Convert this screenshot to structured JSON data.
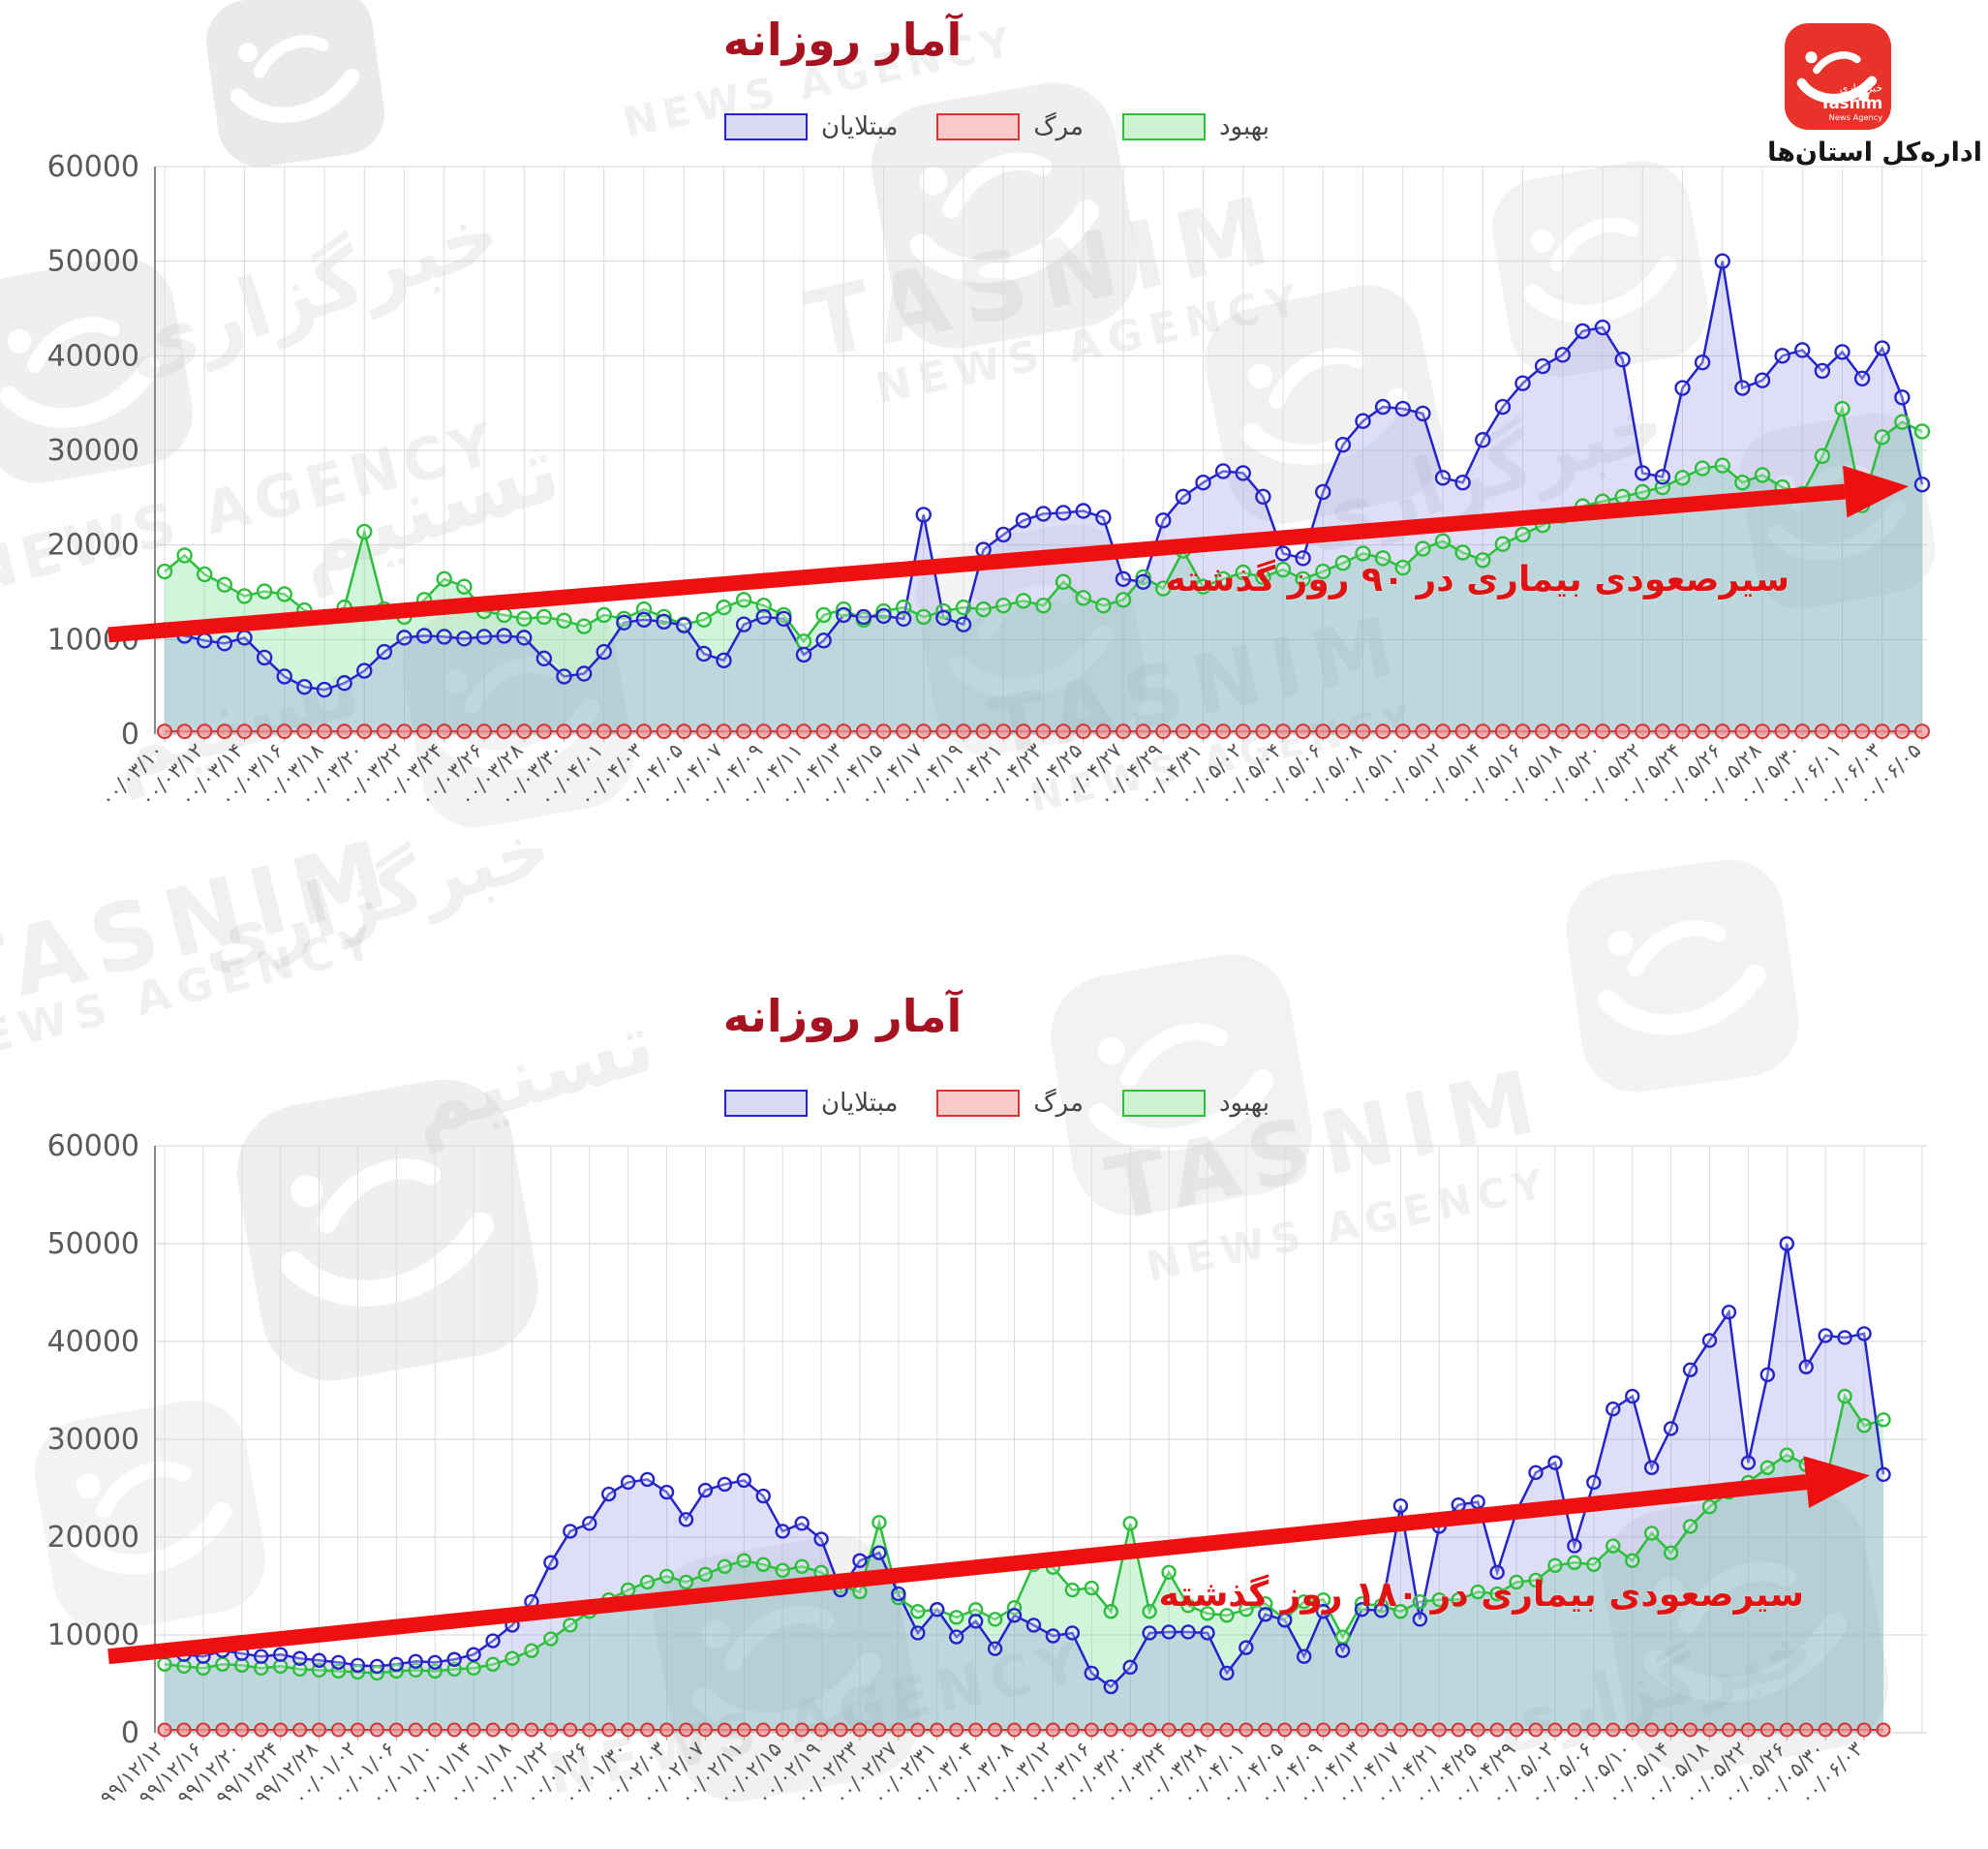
{
  "page": {
    "background": "#ffffff"
  },
  "branding": {
    "logo_text_fa": "خبرگزاری",
    "logo_text_en": "Tasnim",
    "logo_text_en2": "News Agency",
    "logo_color": "#e8332a",
    "department": "اداره‌کل استان‌ها",
    "watermark_fa_1": "خبرگزاری",
    "watermark_fa_2": "تسنیم",
    "watermark_en_1": "TASNIM",
    "watermark_en_2": "NEWS AGENCY"
  },
  "chart_data": [
    {
      "type": "line",
      "title": "آمار روزانه",
      "xlabel": "",
      "ylabel": "",
      "ylim": [
        0,
        60000
      ],
      "y_ticks": [
        0,
        10000,
        20000,
        30000,
        40000,
        50000,
        60000
      ],
      "grid": true,
      "legend_position": "top",
      "legend": [
        {
          "label": "مبتلایان",
          "color": "#2424c8",
          "fill": "#8888dd",
          "fill_opacity": 0.28
        },
        {
          "label": "مرگ",
          "color": "#d43535",
          "fill": "#f4a0a0",
          "fill_opacity": 0.5
        },
        {
          "label": "بهبود",
          "color": "#2cbe3c",
          "fill": "#66dd88",
          "fill_opacity": 0.3
        }
      ],
      "x_tick_labels": [
        "۰۰/۰۳/۱۰",
        "۰۰/۰۳/۱۲",
        "۰۰/۰۳/۱۴",
        "۰۰/۰۳/۱۶",
        "۰۰/۰۳/۱۸",
        "۰۰/۰۳/۲۰",
        "۰۰/۰۳/۲۲",
        "۰۰/۰۳/۲۴",
        "۰۰/۰۳/۲۶",
        "۰۰/۰۳/۲۸",
        "۰۰/۰۳/۳۰",
        "۰۰/۰۴/۰۱",
        "۰۰/۰۴/۰۳",
        "۰۰/۰۴/۰۵",
        "۰۰/۰۴/۰۷",
        "۰۰/۰۴/۰۹",
        "۰۰/۰۴/۱۱",
        "۰۰/۰۴/۱۳",
        "۰۰/۰۴/۱۵",
        "۰۰/۰۴/۱۷",
        "۰۰/۰۴/۱۹",
        "۰۰/۰۴/۲۱",
        "۰۰/۰۴/۲۳",
        "۰۰/۰۴/۲۵",
        "۰۰/۰۴/۲۷",
        "۰۰/۰۴/۲۹",
        "۰۰/۰۴/۳۱",
        "۰۰/۰۵/۰۲",
        "۰۰/۰۵/۰۴",
        "۰۰/۰۵/۰۶",
        "۰۰/۰۵/۰۸",
        "۰۰/۰۵/۱۰",
        "۰۰/۰۵/۱۲",
        "۰۰/۰۵/۱۴",
        "۰۰/۰۵/۱۶",
        "۰۰/۰۵/۱۸",
        "۰۰/۰۵/۲۰",
        "۰۰/۰۵/۲۲",
        "۰۰/۰۵/۲۴",
        "۰۰/۰۵/۲۶",
        "۰۰/۰۵/۲۸",
        "۰۰/۰۵/۳۰",
        "۰۰/۰۶/۰۱",
        "۰۰/۰۶/۰۳",
        "۰۰/۰۶/۰۵"
      ],
      "series": [
        {
          "name": "مبتلایان",
          "values": [
            11000,
            10400,
            9900,
            9600,
            10200,
            8100,
            6100,
            5000,
            4700,
            5400,
            6700,
            8700,
            10200,
            10400,
            10300,
            10100,
            10300,
            10400,
            10200,
            8000,
            6100,
            6400,
            8700,
            11800,
            12100,
            11900,
            11500,
            8500,
            7800,
            11600,
            12400,
            12200,
            8400,
            9900,
            12600,
            12400,
            12500,
            12200,
            23200,
            12300,
            11600,
            19500,
            21100,
            22600,
            23300,
            23400,
            23600,
            22900,
            16400,
            16100,
            22600,
            25100,
            26600,
            27800,
            27600,
            25100,
            19100,
            18600,
            25600,
            30600,
            33100,
            34600,
            34400,
            33900,
            27100,
            26600,
            31100,
            34600,
            37100,
            38900,
            40100,
            42600,
            43000,
            39600,
            27600,
            27200,
            36600,
            39300,
            50000,
            36600,
            37400,
            40000,
            40600,
            38400,
            40400,
            37600,
            40800,
            35600,
            26400
          ]
        },
        {
          "name": "مرگ",
          "values": [
            300,
            300,
            300,
            300,
            300,
            300,
            300,
            300,
            300,
            300,
            300,
            300,
            300,
            300,
            300,
            300,
            300,
            300,
            300,
            300,
            300,
            300,
            300,
            300,
            300,
            300,
            300,
            300,
            300,
            300,
            300,
            300,
            300,
            300,
            300,
            300,
            300,
            300,
            300,
            300,
            300,
            300,
            300,
            300,
            300,
            300,
            300,
            300,
            300,
            300,
            300,
            300,
            300,
            300,
            300,
            300,
            300,
            300,
            300,
            300,
            300,
            300,
            300,
            300,
            300,
            300,
            300,
            300,
            300,
            300,
            300,
            300,
            300,
            300,
            300,
            300,
            300,
            300,
            300,
            300,
            300,
            300,
            300,
            300,
            300,
            300,
            300,
            300,
            300
          ]
        },
        {
          "name": "بهبود",
          "values": [
            17200,
            18900,
            16900,
            15800,
            14600,
            15100,
            14800,
            13100,
            12400,
            13400,
            21400,
            13200,
            12400,
            14200,
            16400,
            15600,
            13000,
            12600,
            12200,
            12400,
            12000,
            11400,
            12600,
            12200,
            13200,
            12400,
            11600,
            12100,
            13400,
            14200,
            13600,
            12600,
            9800,
            12600,
            13200,
            12100,
            13000,
            13400,
            12400,
            13000,
            13400,
            13200,
            13600,
            14100,
            13600,
            16100,
            14400,
            13600,
            14200,
            16600,
            15400,
            19400,
            15600,
            16400,
            17100,
            16600,
            17400,
            16400,
            17200,
            18100,
            19100,
            18600,
            17600,
            19600,
            20400,
            19200,
            18400,
            20100,
            21100,
            22100,
            23100,
            24100,
            24600,
            25100,
            25600,
            26100,
            27100,
            28100,
            28400,
            26600,
            27400,
            26100,
            25400,
            29400,
            34400,
            24200,
            31400,
            33000,
            32000
          ]
        }
      ],
      "annotation": {
        "text": "سیرصعودی بیماری در ۹۰ روز گذشته",
        "color": "#e01212"
      },
      "trend_arrow": {
        "from_value": 10500,
        "to_value": 26200,
        "color": "#ee1010"
      }
    },
    {
      "type": "line",
      "title": "آمار روزانه",
      "xlabel": "",
      "ylabel": "",
      "ylim": [
        0,
        60000
      ],
      "y_ticks": [
        0,
        10000,
        20000,
        30000,
        40000,
        50000,
        60000
      ],
      "grid": true,
      "legend_position": "top",
      "legend": [
        {
          "label": "مبتلایان",
          "color": "#2424c8",
          "fill": "#8888dd",
          "fill_opacity": 0.28
        },
        {
          "label": "مرگ",
          "color": "#d43535",
          "fill": "#f4a0a0",
          "fill_opacity": 0.5
        },
        {
          "label": "بهبود",
          "color": "#2cbe3c",
          "fill": "#66dd88",
          "fill_opacity": 0.3
        }
      ],
      "x_tick_labels": [
        "۹۹/۱۲/۱۲",
        "۹۹/۱۲/۱۶",
        "۹۹/۱۲/۲۰",
        "۹۹/۱۲/۲۴",
        "۹۹/۱۲/۲۸",
        "۰۰/۰۱/۰۲",
        "۰۰/۰۱/۰۶",
        "۰۰/۰۱/۱۰",
        "۰۰/۰۱/۱۴",
        "۰۰/۰۱/۱۸",
        "۰۰/۰۱/۲۲",
        "۰۰/۰۱/۲۶",
        "۰۰/۰۱/۳۰",
        "۰۰/۰۲/۰۳",
        "۰۰/۰۲/۰۷",
        "۰۰/۰۲/۱۱",
        "۰۰/۰۲/۱۵",
        "۰۰/۰۲/۱۹",
        "۰۰/۰۲/۲۳",
        "۰۰/۰۲/۲۷",
        "۰۰/۰۲/۳۱",
        "۰۰/۰۳/۰۴",
        "۰۰/۰۳/۰۸",
        "۰۰/۰۳/۱۲",
        "۰۰/۰۳/۱۶",
        "۰۰/۰۳/۲۰",
        "۰۰/۰۳/۲۴",
        "۰۰/۰۳/۲۸",
        "۰۰/۰۴/۰۱",
        "۰۰/۰۴/۰۵",
        "۰۰/۰۴/۰۹",
        "۰۰/۰۴/۱۳",
        "۰۰/۰۴/۱۷",
        "۰۰/۰۴/۲۱",
        "۰۰/۰۴/۲۵",
        "۰۰/۰۴/۲۹",
        "۰۰/۰۵/۰۲",
        "۰۰/۰۵/۰۶",
        "۰۰/۰۵/۱۰",
        "۰۰/۰۵/۱۴",
        "۰۰/۰۵/۱۸",
        "۰۰/۰۵/۲۲",
        "۰۰/۰۵/۲۶",
        "۰۰/۰۵/۳۰",
        "۰۰/۰۶/۰۳"
      ],
      "series": [
        {
          "name": "مبتلایان",
          "values": [
            8300,
            8000,
            7800,
            8400,
            8100,
            7800,
            8000,
            7600,
            7400,
            7200,
            6900,
            6800,
            7000,
            7300,
            7200,
            7500,
            8000,
            9400,
            11000,
            13400,
            17400,
            20600,
            21400,
            24400,
            25600,
            25900,
            24600,
            21800,
            24800,
            25400,
            25800,
            24200,
            20600,
            21400,
            19800,
            14600,
            17600,
            18400,
            14200,
            10200,
            12600,
            9800,
            11400,
            8600,
            12000,
            11000,
            9900,
            10200,
            6100,
            4700,
            6700,
            10200,
            10300,
            10300,
            10200,
            6100,
            8700,
            12100,
            11500,
            7800,
            12400,
            8400,
            12600,
            12500,
            23200,
            11600,
            21100,
            23300,
            23600,
            16400,
            22600,
            26600,
            27600,
            19100,
            25600,
            33100,
            34400,
            27100,
            31100,
            37100,
            40100,
            43000,
            27600,
            36600,
            50000,
            37400,
            40600,
            40400,
            40800,
            26400
          ]
        },
        {
          "name": "مرگ",
          "values": [
            300,
            300,
            300,
            300,
            300,
            300,
            300,
            300,
            300,
            300,
            300,
            300,
            300,
            300,
            300,
            300,
            300,
            300,
            300,
            300,
            300,
            300,
            300,
            300,
            300,
            300,
            300,
            300,
            300,
            300,
            300,
            300,
            300,
            300,
            300,
            300,
            300,
            300,
            300,
            300,
            300,
            300,
            300,
            300,
            300,
            300,
            300,
            300,
            300,
            300,
            300,
            300,
            300,
            300,
            300,
            300,
            300,
            300,
            300,
            300,
            300,
            300,
            300,
            300,
            300,
            300,
            300,
            300,
            300,
            300,
            300,
            300,
            300,
            300,
            300,
            300,
            300,
            300,
            300,
            300,
            300,
            300,
            300,
            300,
            300,
            300,
            300,
            300,
            300,
            300
          ]
        },
        {
          "name": "بهبود",
          "values": [
            7000,
            6800,
            6600,
            7000,
            6900,
            6600,
            6800,
            6500,
            6400,
            6300,
            6200,
            6100,
            6300,
            6400,
            6300,
            6500,
            6600,
            7000,
            7600,
            8400,
            9600,
            11000,
            12400,
            13600,
            14600,
            15400,
            16000,
            15400,
            16200,
            17000,
            17600,
            17200,
            16600,
            17000,
            16400,
            15000,
            14400,
            21500,
            13800,
            12400,
            12600,
            11800,
            12600,
            11600,
            12800,
            17200,
            16900,
            14600,
            14800,
            12400,
            21400,
            12400,
            16400,
            13000,
            12200,
            12000,
            12600,
            13200,
            11600,
            13400,
            13600,
            9800,
            13200,
            13000,
            12400,
            13400,
            13600,
            13600,
            14400,
            14200,
            15400,
            15600,
            17100,
            17400,
            17200,
            19100,
            17600,
            20400,
            18400,
            21100,
            23100,
            24600,
            25600,
            27100,
            28400,
            27400,
            25400,
            34400,
            31400,
            32000
          ]
        }
      ],
      "annotation": {
        "text": "سیرصعودی بیماری در ۱۸۰ روز گذشته",
        "color": "#e01212"
      },
      "trend_arrow": {
        "from_value": 7800,
        "to_value": 26300,
        "color": "#ee1010"
      }
    }
  ]
}
